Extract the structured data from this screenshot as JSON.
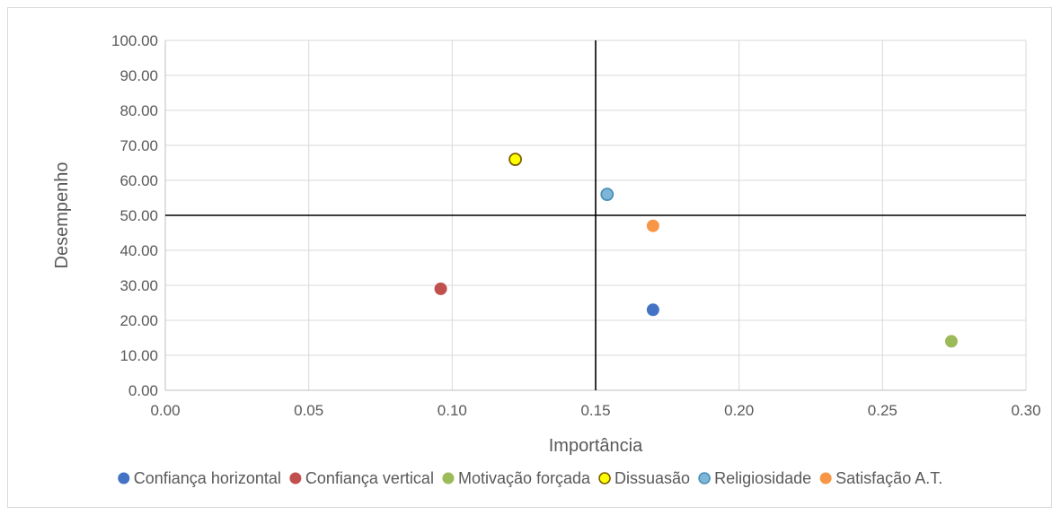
{
  "chart_data": {
    "type": "scatter",
    "xlabel": "Importância",
    "ylabel": "Desempenho",
    "xlim": [
      0,
      0.3
    ],
    "ylim": [
      0,
      100
    ],
    "x_ticks": [
      "0.00",
      "0.05",
      "0.10",
      "0.15",
      "0.20",
      "0.25",
      "0.30"
    ],
    "y_ticks": [
      "0.00",
      "10.00",
      "20.00",
      "30.00",
      "40.00",
      "50.00",
      "60.00",
      "70.00",
      "80.00",
      "90.00",
      "100.00"
    ],
    "grid": true,
    "legend_position": "bottom",
    "reference_lines": {
      "x": 0.15,
      "y": 50
    },
    "series": [
      {
        "name": "Confiança horizontal",
        "color": "#4472c4",
        "x": [
          0.17
        ],
        "y": [
          23
        ]
      },
      {
        "name": "Confiança vertical",
        "color": "#c0504d",
        "x": [
          0.096
        ],
        "y": [
          29
        ]
      },
      {
        "name": "Motivação forçada",
        "color": "#9bbb59",
        "x": [
          0.274
        ],
        "y": [
          14
        ]
      },
      {
        "name": "Dissuasão",
        "color": "#ffff00",
        "stroke": "#7f6000",
        "x": [
          0.122
        ],
        "y": [
          66
        ]
      },
      {
        "name": "Religiosidade",
        "color": "#7fb6d8",
        "stroke": "#4a90b8",
        "x": [
          0.154
        ],
        "y": [
          56
        ]
      },
      {
        "name": "Satisfação A.T.",
        "color": "#f79646",
        "x": [
          0.17
        ],
        "y": [
          47
        ]
      }
    ]
  }
}
